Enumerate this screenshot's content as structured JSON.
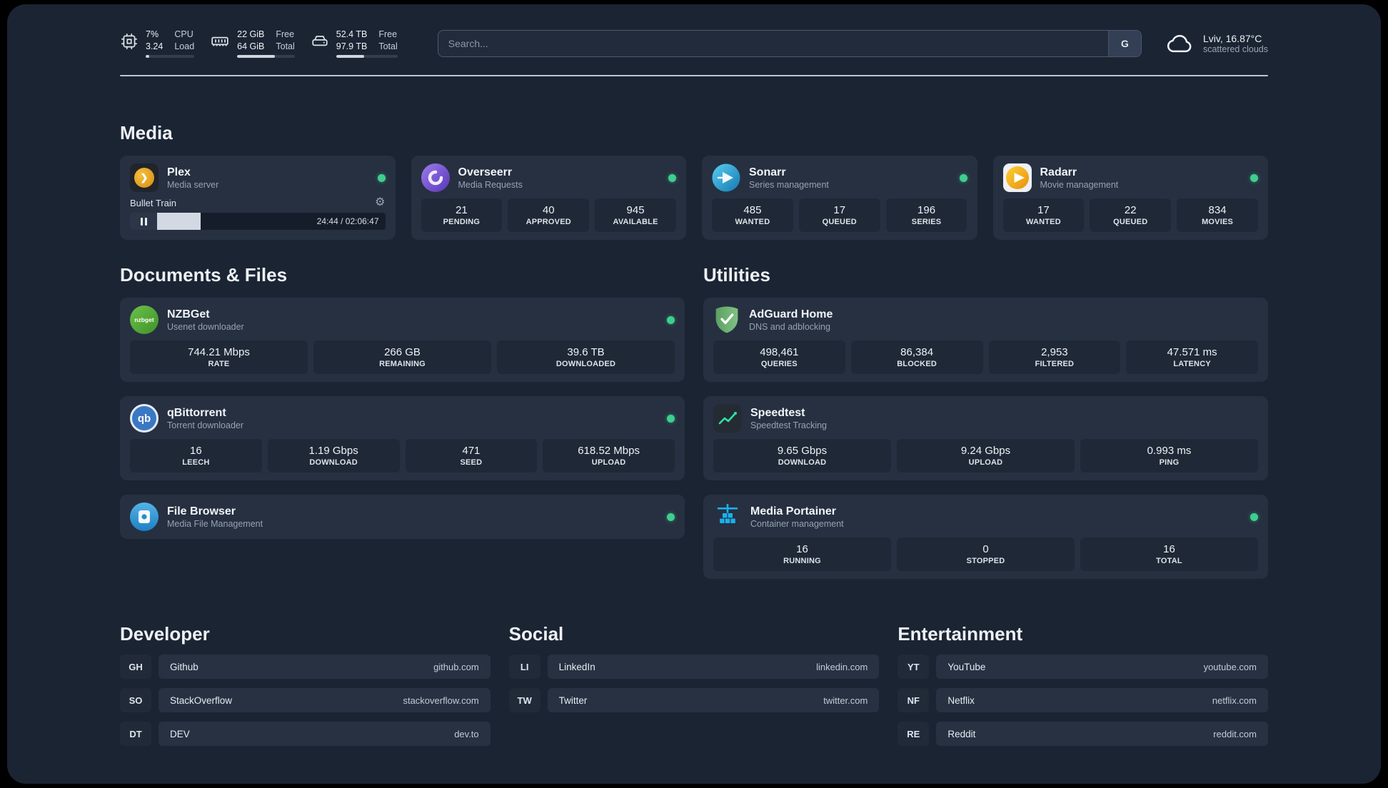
{
  "topbar": {
    "cpu": {
      "usage": "7%",
      "load": "3.24",
      "label_usage": "CPU",
      "label_load": "Load",
      "bar_pct": 7
    },
    "memory": {
      "free": "22 GiB",
      "total": "64 GiB",
      "label_free": "Free",
      "label_total": "Total",
      "bar_pct": 66
    },
    "disk": {
      "free": "52.4 TB",
      "total": "97.9 TB",
      "label_free": "Free",
      "label_total": "Total",
      "bar_pct": 46
    },
    "search": {
      "placeholder": "Search...",
      "provider": "G"
    },
    "weather": {
      "location": "Lviv, 16.87°C",
      "condition": "scattered clouds"
    }
  },
  "icons": {
    "gear": "⚙",
    "plex_chevron": "❯",
    "qb": "qb",
    "nzbget": "nzbget"
  },
  "sections": {
    "media": {
      "heading": "Media",
      "plex": {
        "title": "Plex",
        "subtitle": "Media server",
        "now_playing": "Bullet Train",
        "time": "24:44 / 02:06:47",
        "progress_pct": 19
      },
      "overseerr": {
        "title": "Overseerr",
        "subtitle": "Media Requests",
        "stats": [
          {
            "value": "21",
            "label": "PENDING"
          },
          {
            "value": "40",
            "label": "APPROVED"
          },
          {
            "value": "945",
            "label": "AVAILABLE"
          }
        ]
      },
      "sonarr": {
        "title": "Sonarr",
        "subtitle": "Series management",
        "stats": [
          {
            "value": "485",
            "label": "WANTED"
          },
          {
            "value": "17",
            "label": "QUEUED"
          },
          {
            "value": "196",
            "label": "SERIES"
          }
        ]
      },
      "radarr": {
        "title": "Radarr",
        "subtitle": "Movie management",
        "stats": [
          {
            "value": "17",
            "label": "WANTED"
          },
          {
            "value": "22",
            "label": "QUEUED"
          },
          {
            "value": "834",
            "label": "MOVIES"
          }
        ]
      }
    },
    "documents": {
      "heading": "Documents & Files",
      "nzbget": {
        "title": "NZBGet",
        "subtitle": "Usenet downloader",
        "stats": [
          {
            "value": "744.21 Mbps",
            "label": "RATE"
          },
          {
            "value": "266 GB",
            "label": "REMAINING"
          },
          {
            "value": "39.6 TB",
            "label": "DOWNLOADED"
          }
        ]
      },
      "qbittorrent": {
        "title": "qBittorrent",
        "subtitle": "Torrent downloader",
        "stats": [
          {
            "value": "16",
            "label": "LEECH"
          },
          {
            "value": "1.19 Gbps",
            "label": "DOWNLOAD"
          },
          {
            "value": "471",
            "label": "SEED"
          },
          {
            "value": "618.52 Mbps",
            "label": "UPLOAD"
          }
        ]
      },
      "filebrowser": {
        "title": "File Browser",
        "subtitle": "Media File Management"
      }
    },
    "utilities": {
      "heading": "Utilities",
      "adguard": {
        "title": "AdGuard Home",
        "subtitle": "DNS and adblocking",
        "stats": [
          {
            "value": "498,461",
            "label": "QUERIES"
          },
          {
            "value": "86,384",
            "label": "BLOCKED"
          },
          {
            "value": "2,953",
            "label": "FILTERED"
          },
          {
            "value": "47.571 ms",
            "label": "LATENCY"
          }
        ]
      },
      "speedtest": {
        "title": "Speedtest",
        "subtitle": "Speedtest Tracking",
        "stats": [
          {
            "value": "9.65 Gbps",
            "label": "DOWNLOAD"
          },
          {
            "value": "9.24 Gbps",
            "label": "UPLOAD"
          },
          {
            "value": "0.993 ms",
            "label": "PING"
          }
        ]
      },
      "portainer": {
        "title": "Media Portainer",
        "subtitle": "Container management",
        "stats": [
          {
            "value": "16",
            "label": "RUNNING"
          },
          {
            "value": "0",
            "label": "STOPPED"
          },
          {
            "value": "16",
            "label": "TOTAL"
          }
        ]
      }
    },
    "bookmarks": {
      "developer": {
        "heading": "Developer",
        "items": [
          {
            "abbr": "GH",
            "name": "Github",
            "url": "github.com"
          },
          {
            "abbr": "SO",
            "name": "StackOverflow",
            "url": "stackoverflow.com"
          },
          {
            "abbr": "DT",
            "name": "DEV",
            "url": "dev.to"
          }
        ]
      },
      "social": {
        "heading": "Social",
        "items": [
          {
            "abbr": "LI",
            "name": "LinkedIn",
            "url": "linkedin.com"
          },
          {
            "abbr": "TW",
            "name": "Twitter",
            "url": "twitter.com"
          }
        ]
      },
      "entertainment": {
        "heading": "Entertainment",
        "items": [
          {
            "abbr": "YT",
            "name": "YouTube",
            "url": "youtube.com"
          },
          {
            "abbr": "NF",
            "name": "Netflix",
            "url": "netflix.com"
          },
          {
            "abbr": "RE",
            "name": "Reddit",
            "url": "reddit.com"
          }
        ]
      }
    }
  }
}
